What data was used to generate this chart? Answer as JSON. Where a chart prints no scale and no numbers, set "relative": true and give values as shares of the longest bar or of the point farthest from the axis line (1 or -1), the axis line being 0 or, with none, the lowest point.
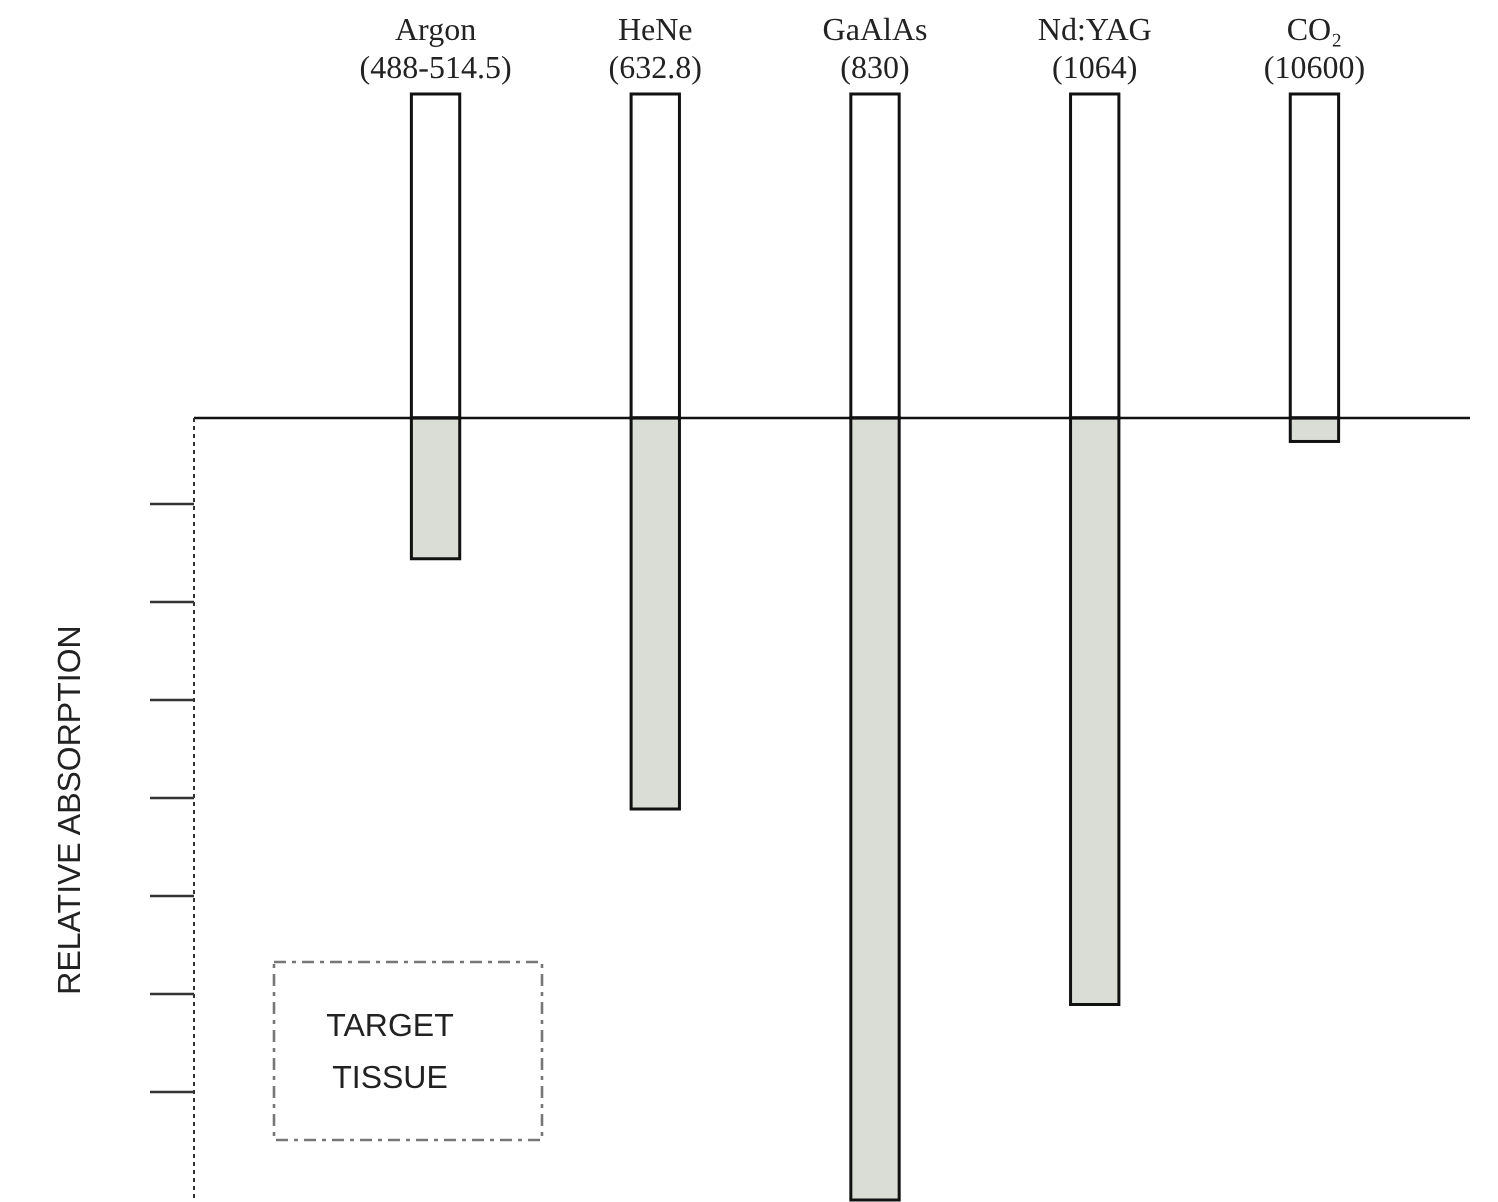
{
  "chart_data": {
    "type": "bar",
    "relative": true,
    "categories": [
      "Argon\n(488-514.5)",
      "HeNe\n(632.8)",
      "GaAlAs\n(830)",
      "Nd:YAG\n(1064)",
      "CO₂\n(10600)"
    ],
    "values": [
      -0.18,
      -0.5,
      -1,
      -0.75,
      -0.03
    ],
    "color": "#d9ddd6",
    "ylabel": "RELATIVE ABSORPTION",
    "annotations": [
      "TARGET\nTISSUE"
    ]
  }
}
